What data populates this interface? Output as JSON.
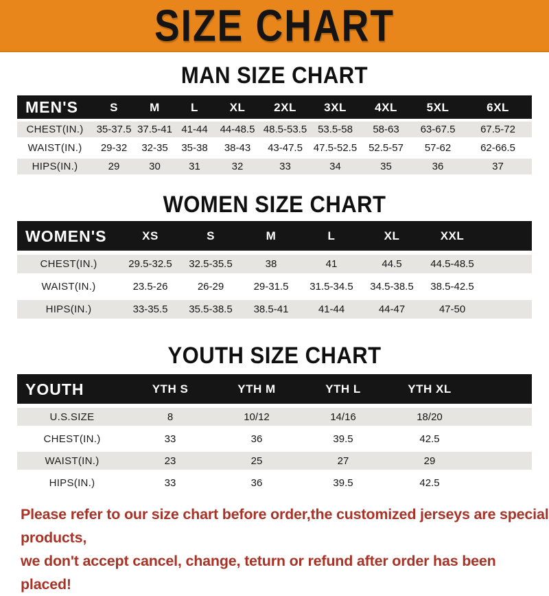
{
  "banner": {
    "title": "SIZE CHART",
    "bg_color": "#e8861c",
    "text_color": "#141414"
  },
  "sections": [
    {
      "heading": "MAN SIZE CHART",
      "table": {
        "label": "MEN'S",
        "columns": [
          "S",
          "M",
          "L",
          "XL",
          "2XL",
          "3XL",
          "4XL",
          "5XL",
          "6XL"
        ],
        "rows": [
          {
            "label": "CHEST(IN.)",
            "values": [
              "35-37.5",
              "37.5-41",
              "41-44",
              "44-48.5",
              "48.5-53.5",
              "53.5-58",
              "58-63",
              "63-67.5",
              "67.5-72"
            ]
          },
          {
            "label": "WAIST(IN.)",
            "values": [
              "29-32",
              "32-35",
              "35-38",
              "38-43",
              "43-47.5",
              "47.5-52.5",
              "52.5-57",
              "57-62",
              "62-66.5"
            ]
          },
          {
            "label": "HIPS(IN.)",
            "values": [
              "29",
              "30",
              "31",
              "32",
              "33",
              "34",
              "35",
              "36",
              "37"
            ]
          }
        ]
      }
    },
    {
      "heading": "WOMEN SIZE CHART",
      "table": {
        "label": "WOMEN'S",
        "columns": [
          "XS",
          "S",
          "M",
          "L",
          "XL",
          "XXL"
        ],
        "rows": [
          {
            "label": "CHEST(IN.)",
            "values": [
              "29.5-32.5",
              "32.5-35.5",
              "38",
              "41",
              "44.5",
              "44.5-48.5"
            ]
          },
          {
            "label": "WAIST(IN.)",
            "values": [
              "23.5-26",
              "26-29",
              "29-31.5",
              "31.5-34.5",
              "34.5-38.5",
              "38.5-42.5"
            ]
          },
          {
            "label": "HIPS(IN.)",
            "values": [
              "33-35.5",
              "35.5-38.5",
              "38.5-41",
              "41-44",
              "44-47",
              "47-50"
            ]
          }
        ]
      }
    },
    {
      "heading": "YOUTH SIZE CHART",
      "table": {
        "label": "YOUTH",
        "columns": [
          "YTH S",
          "YTH M",
          "YTH L",
          "YTH XL"
        ],
        "rows": [
          {
            "label": "U.S.SIZE",
            "values": [
              "8",
              "10/12",
              "14/16",
              "18/20"
            ]
          },
          {
            "label": "CHEST(IN.)",
            "values": [
              "33",
              "36",
              "39.5",
              "42.5"
            ]
          },
          {
            "label": "WAIST(IN.)",
            "values": [
              "23",
              "25",
              "27",
              "29"
            ]
          },
          {
            "label": "HIPS(IN.)",
            "values": [
              "33",
              "36",
              "39.5",
              "42.5"
            ]
          }
        ]
      }
    }
  ],
  "footer": {
    "line1": "Please refer to our size chart before order,the customized jerseys are special products,",
    "line2": "we don't accept cancel, change, teturn or refund after order has been placed!",
    "text_color": "#a93226"
  },
  "colors": {
    "banner_orange": "#e8861c",
    "header_bar_black": "#151515",
    "row_stripe_gray": "#e6e5e2",
    "footer_red": "#a93226"
  }
}
